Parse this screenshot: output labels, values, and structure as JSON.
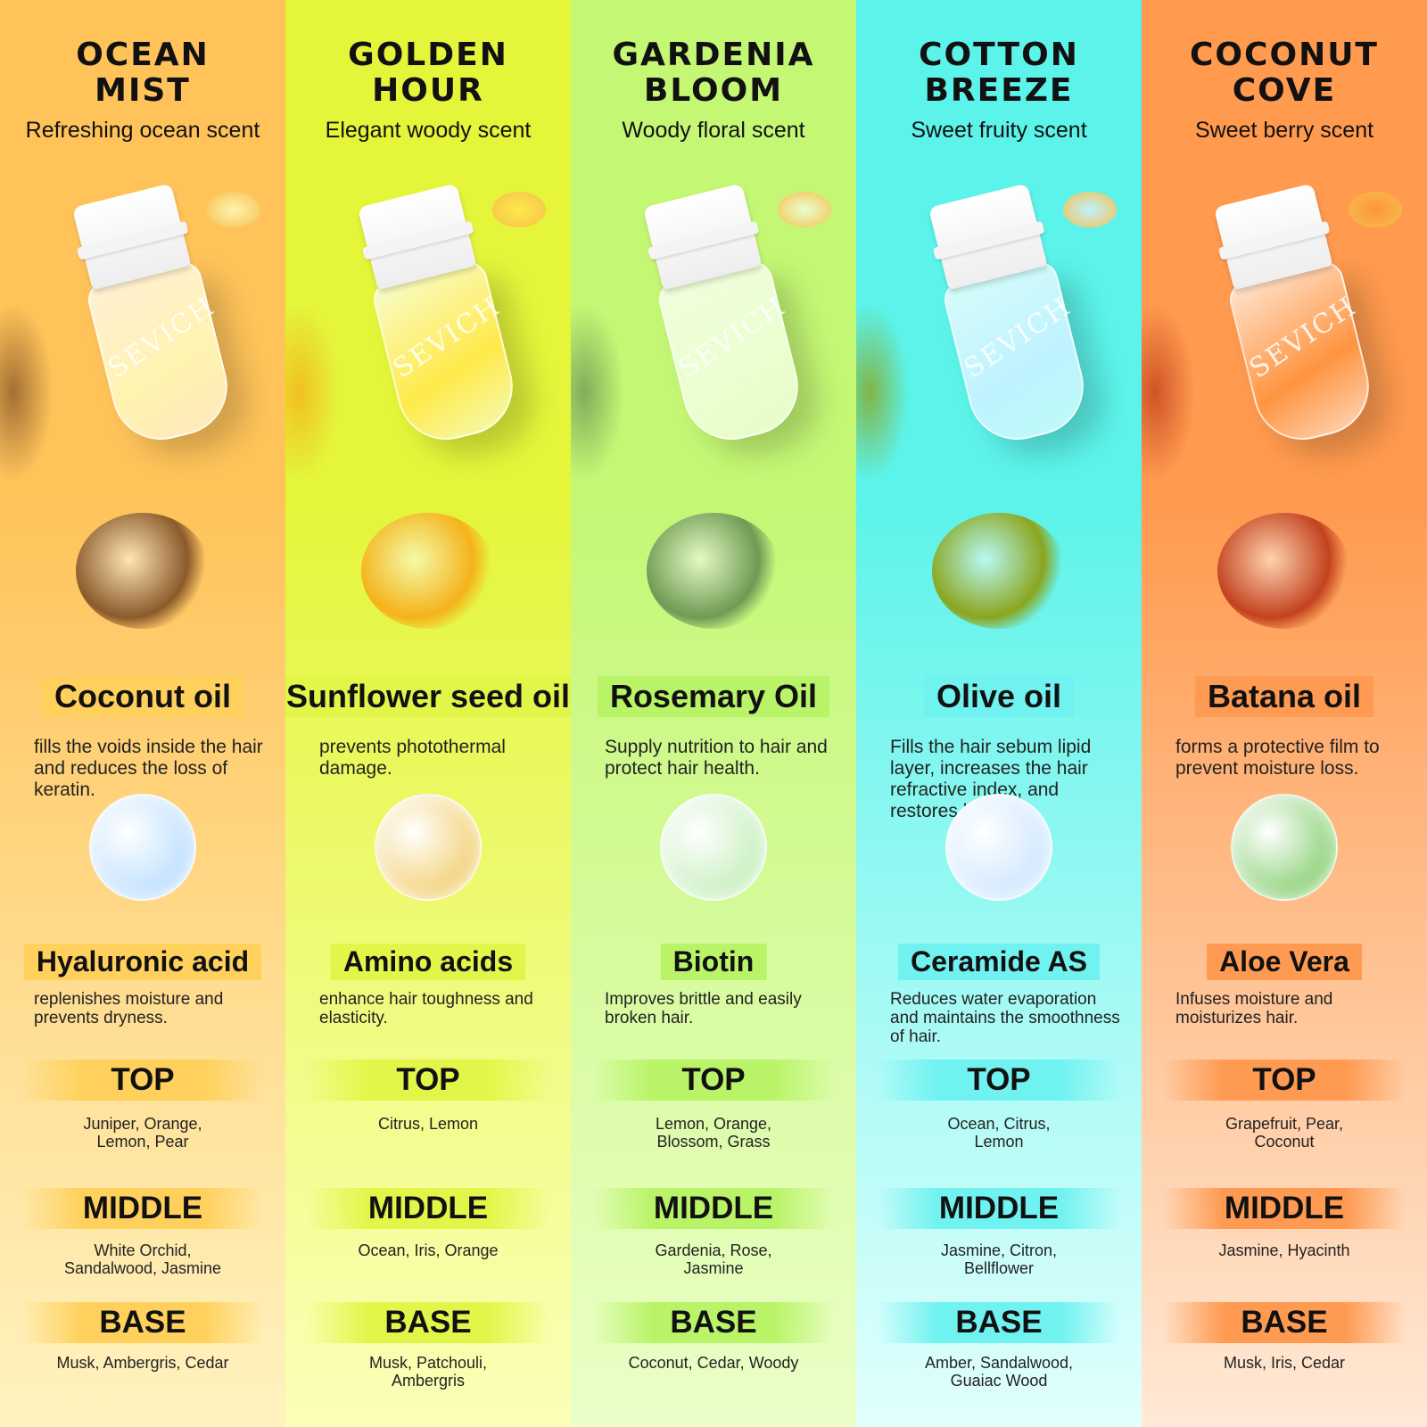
{
  "brand_logo": "SEVICH",
  "note_labels": {
    "top": "TOP",
    "middle": "MIDDLE",
    "base": "BASE"
  },
  "columns": [
    {
      "title_1": "OCEAN",
      "title_2": "MIST",
      "subtitle": "Refreshing ocean scent",
      "ingredient_1": {
        "name": "Coconut oil",
        "desc": "fills the voids inside the hair and reduces the loss of keratin."
      },
      "ingredient_2": {
        "name": "Hyaluronic acid",
        "desc": "replenishes moisture and prevents dryness."
      },
      "top_notes": "Juniper, Orange, Lemon, Pear",
      "middle_notes": "White Orchid, Sandalwood, Jasmine",
      "base_notes": "Musk, Ambergris, Cedar",
      "colors": {
        "bg_top": "#ffc35a",
        "bg_bottom": "#fff3c0",
        "accent": "#ffd15c",
        "oil": "#fff3b0",
        "img": "#8b5a2b",
        "img2": "#bfe0ff"
      }
    },
    {
      "title_1": "GOLDEN",
      "title_2": "HOUR",
      "subtitle": "Elegant woody scent",
      "ingredient_1": {
        "name": "Sunflower seed oil",
        "desc": "prevents photothermal damage."
      },
      "ingredient_2": {
        "name": "Amino acids",
        "desc": "enhance hair toughness and elasticity."
      },
      "top_notes": "Citrus, Lemon",
      "middle_notes": "Ocean, Iris, Orange",
      "base_notes": "Musk, Patchouli, Ambergris",
      "colors": {
        "bg_top": "#e4f53a",
        "bg_bottom": "#fbffb8",
        "accent": "#e2f64a",
        "oil": "#ffe94a",
        "img": "#f5b21a",
        "img2": "#f3d27a"
      }
    },
    {
      "title_1": "GARDENIA",
      "title_2": "BLOOM",
      "subtitle": "Woody floral scent",
      "ingredient_1": {
        "name": "Rosemary Oil",
        "desc": "Supply nutrition to hair and protect hair health."
      },
      "ingredient_2": {
        "name": "Biotin",
        "desc": "Improves brittle and easily broken hair."
      },
      "top_notes": "Lemon, Orange, Blossom, Grass",
      "middle_notes": "Gardenia, Rose, Jasmine",
      "base_notes": "Coconut, Cedar, Woody",
      "colors": {
        "bg_top": "#c4f774",
        "bg_bottom": "#eaffc8",
        "accent": "#b9f468",
        "oil": "#eaffd0",
        "img": "#6f9a55",
        "img2": "#c9f0c0"
      }
    },
    {
      "title_1": "COTTON",
      "title_2": "BREEZE",
      "subtitle": "Sweet fruity scent",
      "ingredient_1": {
        "name": "Olive oil",
        "desc": "Fills the hair sebum lipid layer, increases the hair refractive index, and restores luster."
      },
      "ingredient_2": {
        "name": "Ceramide AS",
        "desc": "Reduces water evaporation and maintains the smoothness of hair."
      },
      "top_notes": "Ocean, Citrus, Lemon",
      "middle_notes": "Jasmine, Citron, Bellflower",
      "base_notes": "Amber, Sandalwood, Guaiac Wood",
      "colors": {
        "bg_top": "#5cf3ea",
        "bg_bottom": "#e2fffd",
        "accent": "#6ff2f0",
        "oil": "#bff2ff",
        "img": "#8aa51e",
        "img2": "#cfe8ff"
      }
    },
    {
      "title_1": "COCONUT",
      "title_2": "COVE",
      "subtitle": "Sweet berry scent",
      "ingredient_1": {
        "name": "Batana oil",
        "desc": "forms a protective film to prevent moisture loss."
      },
      "ingredient_2": {
        "name": "Aloe Vera",
        "desc": "Infuses moisture and moisturizes hair."
      },
      "top_notes": "Grapefruit, Pear, Coconut",
      "middle_notes": "Jasmine, Hyacinth",
      "base_notes": "Musk, Iris, Cedar",
      "colors": {
        "bg_top": "#ff9a4e",
        "bg_bottom": "#ffe9d6",
        "accent": "#ff9a52",
        "oil": "#ff9440",
        "img": "#c3421e",
        "img2": "#8fd27a"
      }
    }
  ]
}
